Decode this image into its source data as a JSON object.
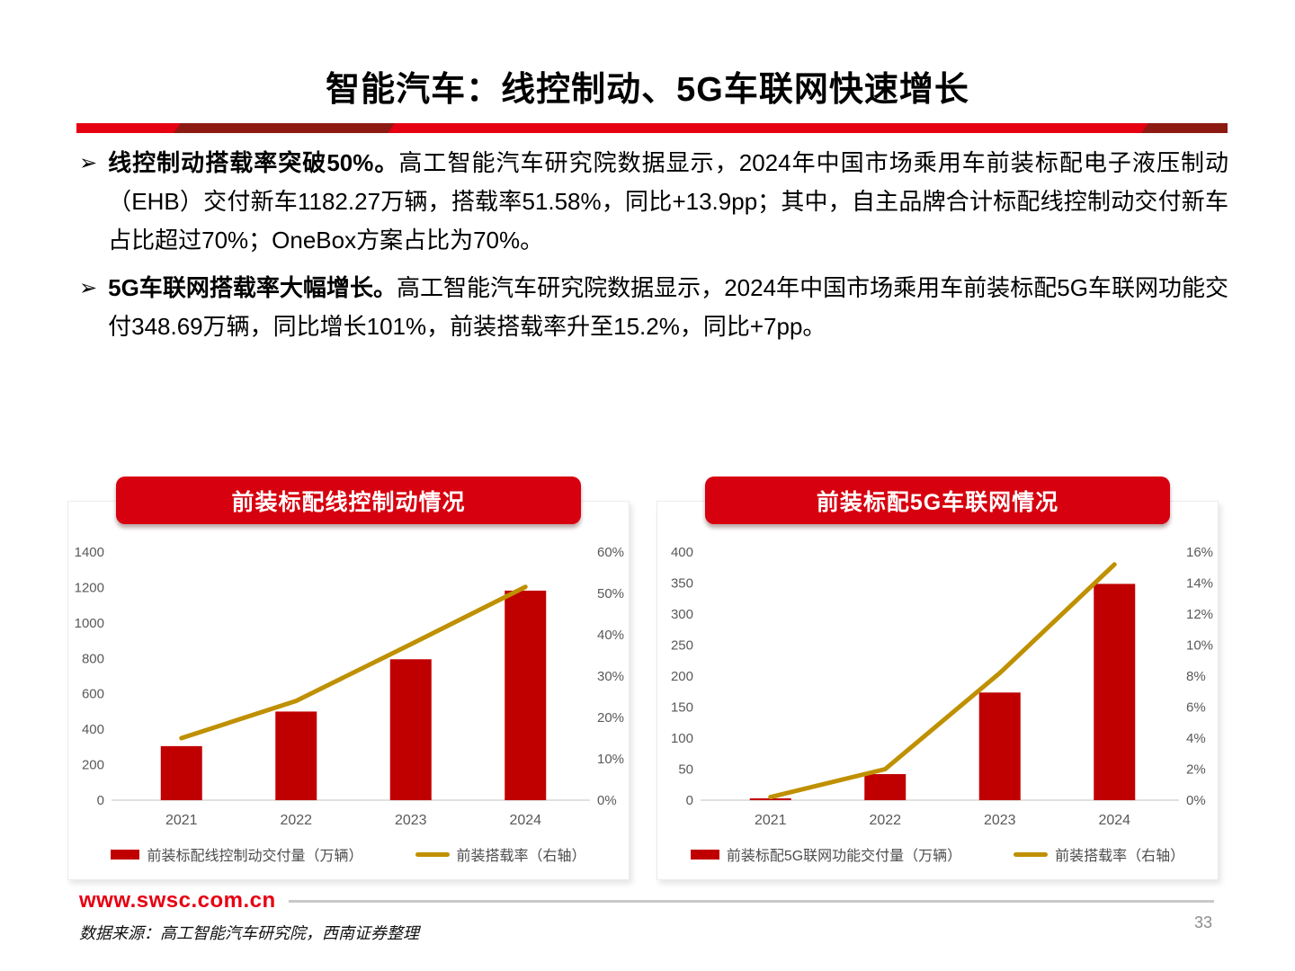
{
  "slide": {
    "title": "智能汽车：线控制动、5G车联网快速增长",
    "bullets": [
      {
        "lead": "线控制动搭载率突破50%。",
        "body": "高工智能汽车研究院数据显示，2024年中国市场乘用车前装标配电子液压制动（EHB）交付新车1182.27万辆，搭载率51.58%，同比+13.9pp；其中，自主品牌合计标配线控制动交付新车占比超过70%；OneBox方案占比为70%。"
      },
      {
        "lead": "5G车联网搭载率大幅增长。",
        "body": "高工智能汽车研究院数据显示，2024年中国市场乘用车前装标配5G车联网功能交付348.69万辆，同比增长101%，前装搭载率升至15.2%，同比+7pp。"
      }
    ],
    "footer": {
      "website": "www.swsc.com.cn",
      "source": "数据来源：高工智能汽车研究院，西南证券整理"
    },
    "page_number": "33",
    "colors": {
      "accent_red": "#d7000f",
      "dark_red": "#8c1a13",
      "bar_red": "#c00000",
      "line_gold": "#bf9000",
      "axis_gray": "#595959"
    }
  },
  "chart_data": [
    {
      "type": "bar",
      "subtype": "bar+line-dual-axis",
      "title": "前装标配线控制动情况",
      "categories": [
        "2021",
        "2022",
        "2023",
        "2024"
      ],
      "series": [
        {
          "name": "前装标配线控制动交付量（万辆）",
          "type": "bar",
          "axis": "left",
          "values": [
            305,
            500,
            795,
            1182.27
          ]
        },
        {
          "name": "前装搭载率（右轴）",
          "type": "line",
          "axis": "right",
          "values": [
            15,
            24,
            37.7,
            51.58
          ]
        }
      ],
      "left_axis": {
        "min": 0,
        "max": 1400,
        "step": 200
      },
      "right_axis": {
        "min": 0,
        "max": 60,
        "step": 10,
        "suffix": "%"
      },
      "legend_position": "bottom",
      "grid": false
    },
    {
      "type": "bar",
      "subtype": "bar+line-dual-axis",
      "title": "前装标配5G车联网情况",
      "categories": [
        "2021",
        "2022",
        "2023",
        "2024"
      ],
      "series": [
        {
          "name": "前装标配5G联网功能交付量（万辆）",
          "type": "bar",
          "axis": "left",
          "values": [
            3,
            42,
            173.5,
            348.69
          ]
        },
        {
          "name": "前装搭载率（右轴）",
          "type": "line",
          "axis": "right",
          "values": [
            0.2,
            2,
            8.2,
            15.2
          ]
        }
      ],
      "left_axis": {
        "min": 0,
        "max": 400,
        "step": 50
      },
      "right_axis": {
        "min": 0,
        "max": 16,
        "step": 2,
        "suffix": "%"
      },
      "legend_position": "bottom",
      "grid": false
    }
  ]
}
